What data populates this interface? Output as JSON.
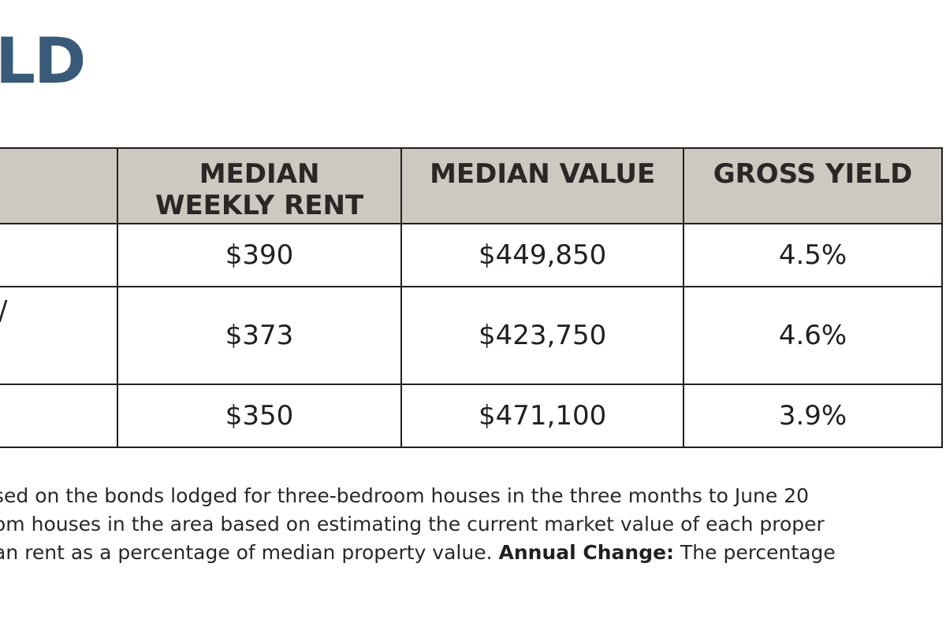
{
  "heading": "LD",
  "table": {
    "headers": {
      "region": "",
      "rent_line1": "MEDIAN",
      "rent_line2": "WEEKLY RENT",
      "value": "MEDIAN VALUE",
      "yield": "GROSS YIELD"
    },
    "rows": [
      {
        "label": "",
        "rent": "$390",
        "value": "$449,850",
        "yield": "4.5%"
      },
      {
        "label": "/",
        "rent": "$373",
        "value": "$423,750",
        "yield": "4.6%"
      },
      {
        "label": "",
        "rent": "$350",
        "value": "$471,100",
        "yield": "3.9%"
      }
    ]
  },
  "notes": {
    "line1": "sed on the bonds lodged for three-bedroom houses in the three months to June 20",
    "line2": "om houses in the area based on estimating the current market value of each proper",
    "line3_text": "an rent as a percentage of median property value.",
    "line3_bold": "Annual Change:",
    "line3_tail": "The percentage"
  }
}
